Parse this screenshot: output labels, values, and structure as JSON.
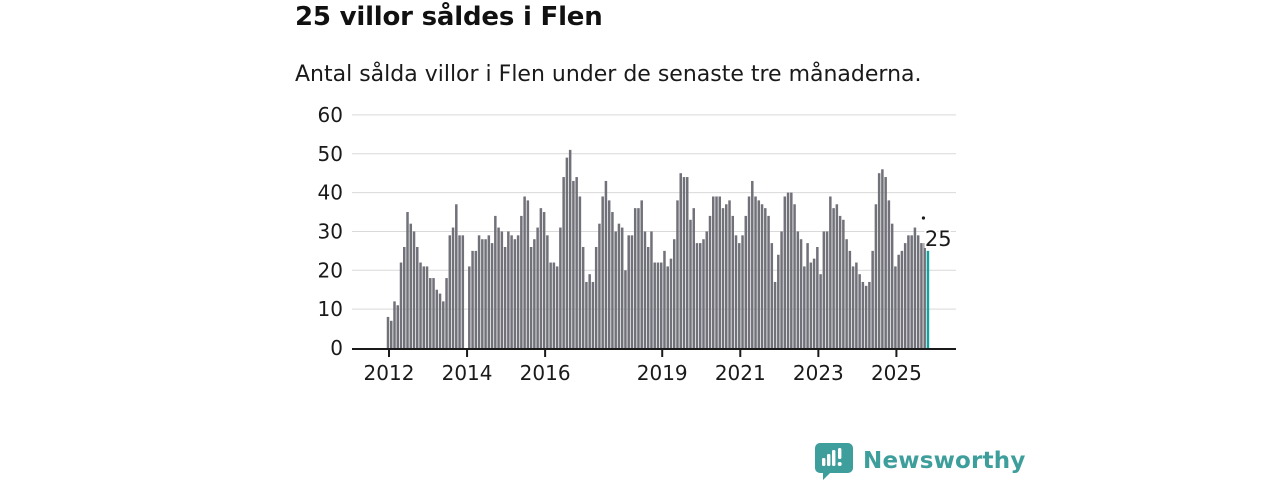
{
  "header": {
    "title": "25 villor såldes i Flen",
    "subtitle": "Antal sålda villor i Flen under de senaste tre månaderna."
  },
  "chart_data": {
    "type": "bar",
    "title": "25 villor såldes i Flen",
    "subtitle": "Antal sålda villor i Flen under de senaste tre månaderna.",
    "start_month": "2012-01",
    "values": [
      8,
      7,
      12,
      11,
      22,
      26,
      35,
      32,
      30,
      26,
      22,
      21,
      21,
      18,
      18,
      15,
      14,
      12,
      18,
      29,
      31,
      37,
      29,
      29,
      0,
      21,
      25,
      25,
      29,
      28,
      28,
      29,
      27,
      34,
      31,
      30,
      26,
      30,
      29,
      28,
      29,
      34,
      39,
      38,
      26,
      28,
      31,
      36,
      35,
      29,
      22,
      22,
      21,
      31,
      44,
      49,
      51,
      43,
      44,
      39,
      26,
      17,
      19,
      17,
      26,
      32,
      39,
      43,
      38,
      35,
      30,
      32,
      31,
      20,
      29,
      29,
      36,
      36,
      38,
      30,
      26,
      30,
      22,
      22,
      22,
      25,
      21,
      23,
      28,
      38,
      45,
      44,
      44,
      33,
      36,
      27,
      27,
      28,
      30,
      34,
      39,
      39,
      39,
      36,
      37,
      38,
      34,
      29,
      27,
      29,
      34,
      39,
      43,
      39,
      38,
      37,
      36,
      34,
      27,
      17,
      24,
      30,
      39,
      40,
      40,
      37,
      30,
      28,
      21,
      27,
      22,
      23,
      26,
      19,
      30,
      30,
      39,
      36,
      37,
      34,
      33,
      28,
      25,
      21,
      22,
      19,
      17,
      16,
      17,
      25,
      37,
      45,
      46,
      44,
      38,
      32,
      21,
      24,
      25,
      27,
      29,
      29,
      31,
      29,
      27,
      27,
      25
    ],
    "y_ticks": [
      0,
      10,
      20,
      30,
      40,
      50,
      60
    ],
    "ylim": [
      0,
      60
    ],
    "x_ticks": [
      {
        "label": "2012",
        "index": 0
      },
      {
        "label": "2014",
        "index": 24
      },
      {
        "label": "2016",
        "index": 48
      },
      {
        "label": "2019",
        "index": 84
      },
      {
        "label": "2021",
        "index": 108
      },
      {
        "label": "2023",
        "index": 132
      },
      {
        "label": "2025",
        "index": 156
      }
    ],
    "grid": "horizontal",
    "legend": "none",
    "highlight": {
      "index": 166,
      "value": 25,
      "label": "25"
    }
  },
  "footer": {
    "brand": "Newsworthy"
  },
  "colors": {
    "bar": "#71717a",
    "highlight": "#12a2a0",
    "grid": "#d9d9d9",
    "axis": "#1a1a1a",
    "text": "#1a1a1a",
    "logo": "#3d9e9b"
  }
}
